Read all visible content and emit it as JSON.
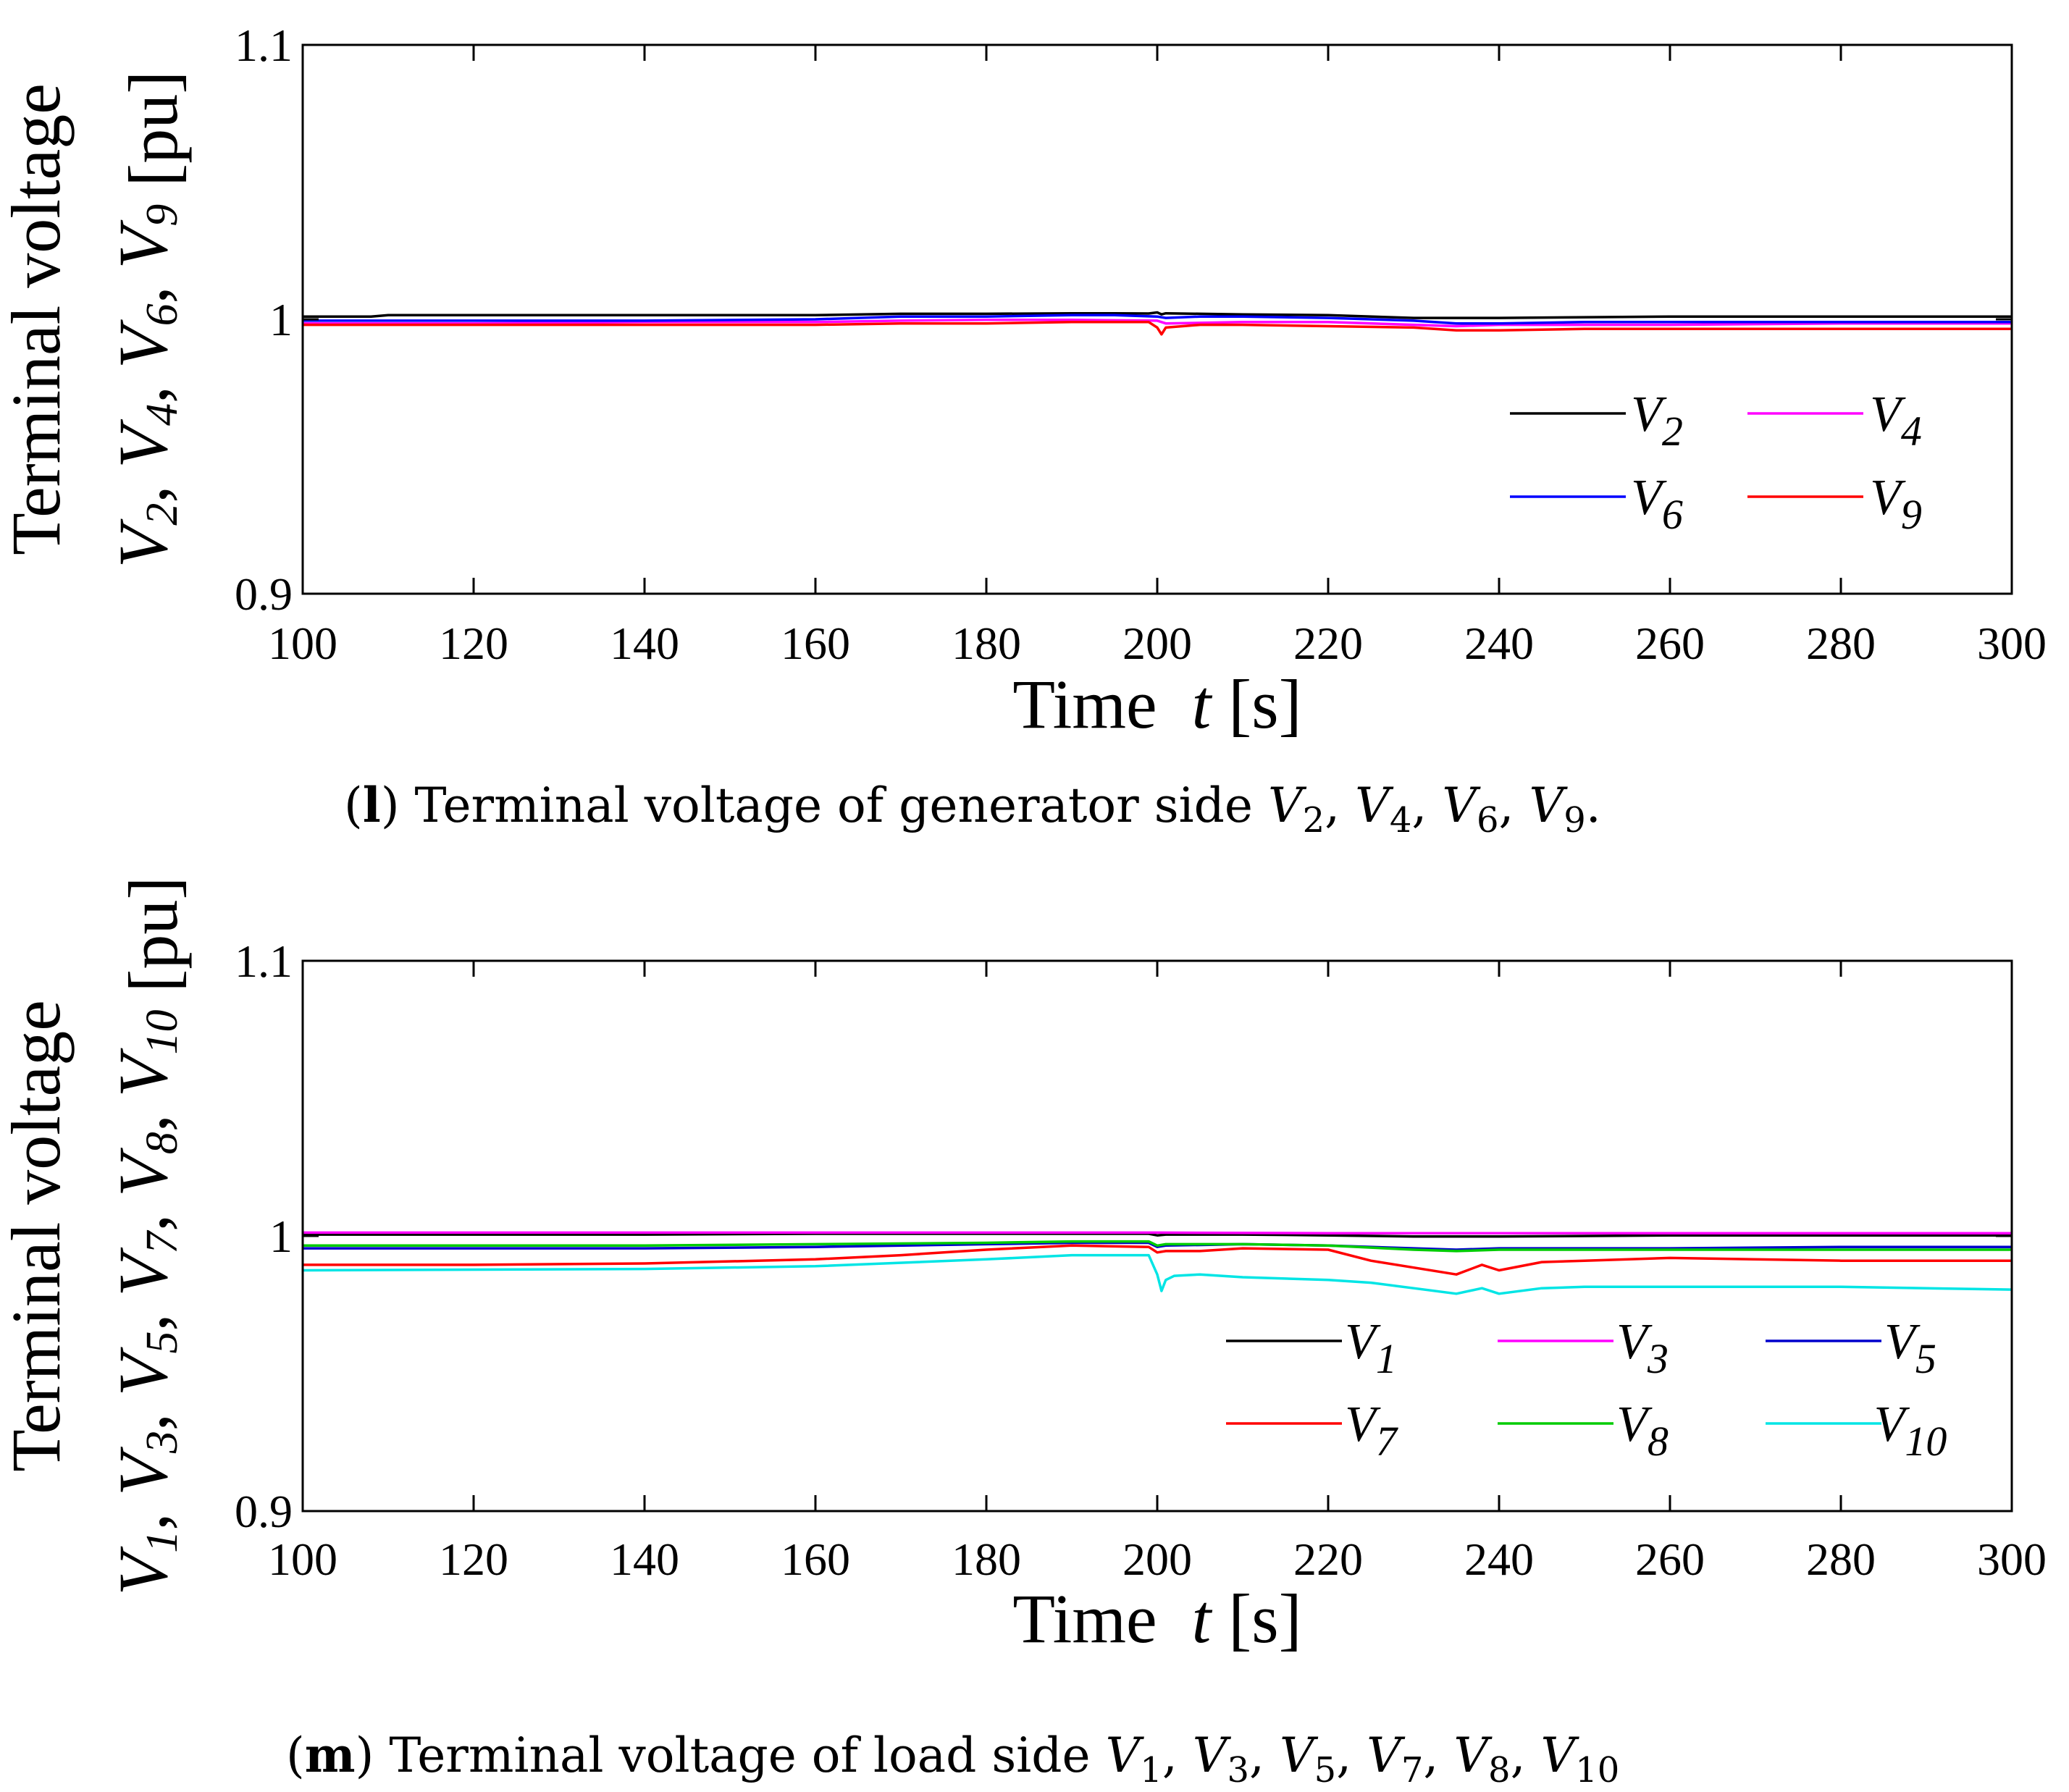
{
  "chart_data": [
    {
      "type": "line",
      "title": "",
      "caption": {
        "label": "l",
        "text": " Terminal voltage of generator side ",
        "vars": [
          "2",
          "4",
          "6",
          "9"
        ],
        "end": "."
      },
      "xlabel": {
        "main": "Time",
        "var": "t",
        "unit": " [s]"
      },
      "ylabel": {
        "line1": "Terminal voltage",
        "vars": [
          "2",
          "4",
          "6",
          "9"
        ],
        "unit": " [pu]"
      },
      "xlim": [
        100,
        300
      ],
      "ylim": [
        0.9,
        1.1
      ],
      "xticks": [
        "100",
        "120",
        "140",
        "160",
        "180",
        "200",
        "220",
        "240",
        "260",
        "280",
        "300"
      ],
      "yticks": [
        "0.9",
        "1",
        "1.1"
      ],
      "grid": false,
      "legend": {
        "position": "lower-right",
        "columns": 2
      },
      "series": [
        {
          "name": "V",
          "sub": "2",
          "color": "#000000",
          "x": [
            100,
            108,
            110,
            140,
            160,
            170,
            180,
            190,
            195,
            199,
            200,
            200.5,
            201,
            205,
            210,
            220,
            230,
            240,
            260,
            280,
            300
          ],
          "values": [
            1.001,
            1.001,
            1.0015,
            1.0015,
            1.0015,
            1.002,
            1.002,
            1.0022,
            1.0022,
            1.0021,
            1.0025,
            1.0018,
            1.0022,
            1.002,
            1.0018,
            1.0015,
            1.0005,
            1.0005,
            1.001,
            1.001,
            1.001
          ]
        },
        {
          "name": "V",
          "sub": "4",
          "color": "#ff00ff",
          "x": [
            100,
            120,
            140,
            160,
            170,
            180,
            190,
            200,
            201,
            210,
            220,
            230,
            235,
            240,
            260,
            280,
            300
          ],
          "values": [
            0.9985,
            0.9985,
            0.999,
            0.999,
            0.9995,
            0.9998,
            0.9998,
            0.9995,
            0.9985,
            0.999,
            0.999,
            0.998,
            0.9975,
            0.998,
            0.998,
            0.9985,
            0.9985
          ]
        },
        {
          "name": "V",
          "sub": "6",
          "color": "#0000ff",
          "x": [
            100,
            120,
            140,
            160,
            165,
            170,
            180,
            190,
            195,
            200,
            201,
            205,
            210,
            220,
            230,
            235,
            240,
            250,
            260,
            280,
            300
          ],
          "values": [
            0.9995,
            0.9995,
            0.9995,
            1.0,
            1.0005,
            1.001,
            1.001,
            1.0015,
            1.0015,
            1.001,
            1.0005,
            1.001,
            1.001,
            1.0005,
            0.9995,
            0.9985,
            0.9985,
            0.999,
            0.999,
            0.999,
            0.999
          ]
        },
        {
          "name": "V",
          "sub": "9",
          "color": "#ff0000",
          "x": [
            100,
            120,
            140,
            160,
            170,
            180,
            190,
            199,
            200,
            200.5,
            201,
            205,
            210,
            220,
            230,
            235,
            240,
            250,
            260,
            280,
            300
          ],
          "values": [
            0.998,
            0.998,
            0.998,
            0.998,
            0.9985,
            0.9985,
            0.999,
            0.999,
            0.997,
            0.9945,
            0.997,
            0.998,
            0.998,
            0.9975,
            0.997,
            0.996,
            0.996,
            0.9965,
            0.9965,
            0.9965,
            0.9965
          ]
        }
      ]
    },
    {
      "type": "line",
      "title": "",
      "caption": {
        "label": "m",
        "text": " Terminal voltage of load side ",
        "vars": [
          "1",
          "3",
          "5",
          "7",
          "8",
          "10"
        ],
        "end": ""
      },
      "xlabel": {
        "main": "Time",
        "var": "t",
        "unit": " [s]"
      },
      "ylabel": {
        "line1": "Terminal voltage",
        "vars": [
          "1",
          "3",
          "5",
          "7",
          "8",
          "10"
        ],
        "unit": " [pu]"
      },
      "xlim": [
        100,
        300
      ],
      "ylim": [
        0.9,
        1.1
      ],
      "xticks": [
        "100",
        "120",
        "140",
        "160",
        "180",
        "200",
        "220",
        "240",
        "260",
        "280",
        "300"
      ],
      "yticks": [
        "0.9",
        "1",
        "1.1"
      ],
      "grid": false,
      "legend": {
        "position": "lower-right",
        "columns": 3
      },
      "series": [
        {
          "name": "V",
          "sub": "1",
          "color": "#000000",
          "x": [
            100,
            140,
            160,
            180,
            199,
            200,
            201,
            210,
            220,
            230,
            240,
            260,
            280,
            300
          ],
          "values": [
            1.0005,
            1.0005,
            1.0008,
            1.0008,
            1.0008,
            1.0002,
            1.0005,
            1.0005,
            1.0002,
            0.9998,
            0.9998,
            1.0002,
            1.0002,
            1.0002
          ]
        },
        {
          "name": "V",
          "sub": "3",
          "color": "#ff00ff",
          "x": [
            100,
            140,
            160,
            180,
            200,
            220,
            240,
            260,
            280,
            300
          ],
          "values": [
            1.0012,
            1.0012,
            1.0012,
            1.0012,
            1.0012,
            1.001,
            1.001,
            1.001,
            1.001,
            1.001
          ]
        },
        {
          "name": "V",
          "sub": "5",
          "color": "#0000cc",
          "x": [
            100,
            140,
            160,
            180,
            190,
            199,
            200,
            201,
            210,
            220,
            230,
            235,
            240,
            260,
            280,
            300
          ],
          "values": [
            0.9955,
            0.9955,
            0.996,
            0.997,
            0.9975,
            0.9975,
            0.996,
            0.9965,
            0.997,
            0.9965,
            0.9955,
            0.995,
            0.9955,
            0.9955,
            0.996,
            0.996
          ]
        },
        {
          "name": "V",
          "sub": "7",
          "color": "#ff0000",
          "x": [
            100,
            120,
            140,
            160,
            170,
            180,
            190,
            199,
            200,
            201,
            205,
            210,
            220,
            225,
            230,
            235,
            238,
            240,
            245,
            250,
            260,
            280,
            300
          ],
          "values": [
            0.9895,
            0.9895,
            0.99,
            0.9915,
            0.993,
            0.995,
            0.9965,
            0.996,
            0.994,
            0.9945,
            0.9945,
            0.9955,
            0.995,
            0.991,
            0.9885,
            0.986,
            0.9895,
            0.9875,
            0.9905,
            0.991,
            0.992,
            0.991,
            0.991
          ]
        },
        {
          "name": "V",
          "sub": "8",
          "color": "#00cc00",
          "x": [
            100,
            140,
            160,
            180,
            190,
            199,
            200,
            201,
            210,
            220,
            230,
            235,
            240,
            260,
            280,
            300
          ],
          "values": [
            0.9965,
            0.9965,
            0.997,
            0.9975,
            0.998,
            0.998,
            0.9965,
            0.997,
            0.997,
            0.9965,
            0.995,
            0.9945,
            0.995,
            0.995,
            0.995,
            0.995
          ]
        },
        {
          "name": "V",
          "sub": "10",
          "color": "#00e5e5",
          "x": [
            100,
            140,
            160,
            180,
            190,
            199,
            200,
            200.5,
            201,
            202,
            205,
            210,
            220,
            225,
            230,
            235,
            238,
            240,
            245,
            250,
            260,
            280,
            300
          ],
          "values": [
            0.9875,
            0.988,
            0.989,
            0.9915,
            0.993,
            0.993,
            0.986,
            0.98,
            0.984,
            0.9855,
            0.986,
            0.985,
            0.984,
            0.983,
            0.981,
            0.979,
            0.981,
            0.979,
            0.981,
            0.9815,
            0.9815,
            0.9815,
            0.9805
          ]
        }
      ]
    }
  ]
}
